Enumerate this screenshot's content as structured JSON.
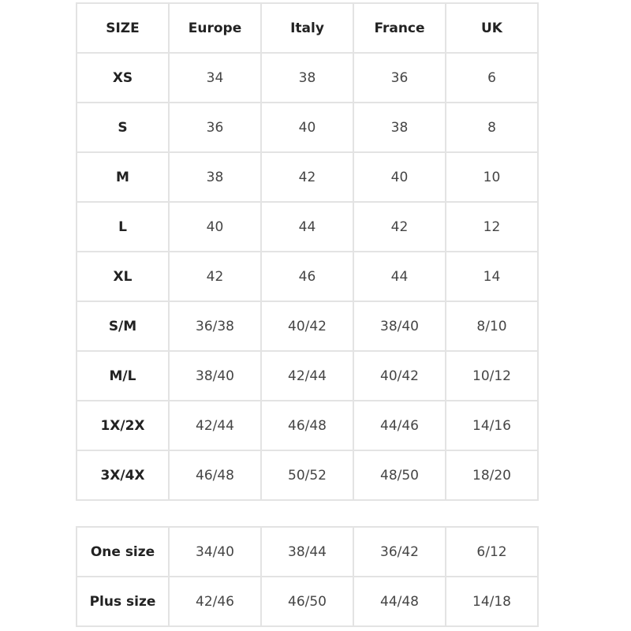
{
  "size_table": {
    "headers": [
      "SIZE",
      "Europe",
      "Italy",
      "France",
      "UK"
    ],
    "rows": [
      [
        "XS",
        "34",
        "38",
        "36",
        "6"
      ],
      [
        "S",
        "36",
        "40",
        "38",
        "8"
      ],
      [
        "M",
        "38",
        "42",
        "40",
        "10"
      ],
      [
        "L",
        "40",
        "44",
        "42",
        "12"
      ],
      [
        "XL",
        "42",
        "46",
        "44",
        "14"
      ],
      [
        "S/M",
        "36/38",
        "40/42",
        "38/40",
        "8/10"
      ],
      [
        "M/L",
        "38/40",
        "42/44",
        "40/42",
        "10/12"
      ],
      [
        "1X/2X",
        "42/44",
        "46/48",
        "44/46",
        "14/16"
      ],
      [
        "3X/4X",
        "46/48",
        "50/52",
        "48/50",
        "18/20"
      ]
    ]
  },
  "range_table": {
    "rows": [
      [
        "One size",
        "34/40",
        "38/44",
        "36/42",
        "6/12"
      ],
      [
        "Plus size",
        "42/46",
        "46/50",
        "44/48",
        "14/18"
      ]
    ]
  }
}
